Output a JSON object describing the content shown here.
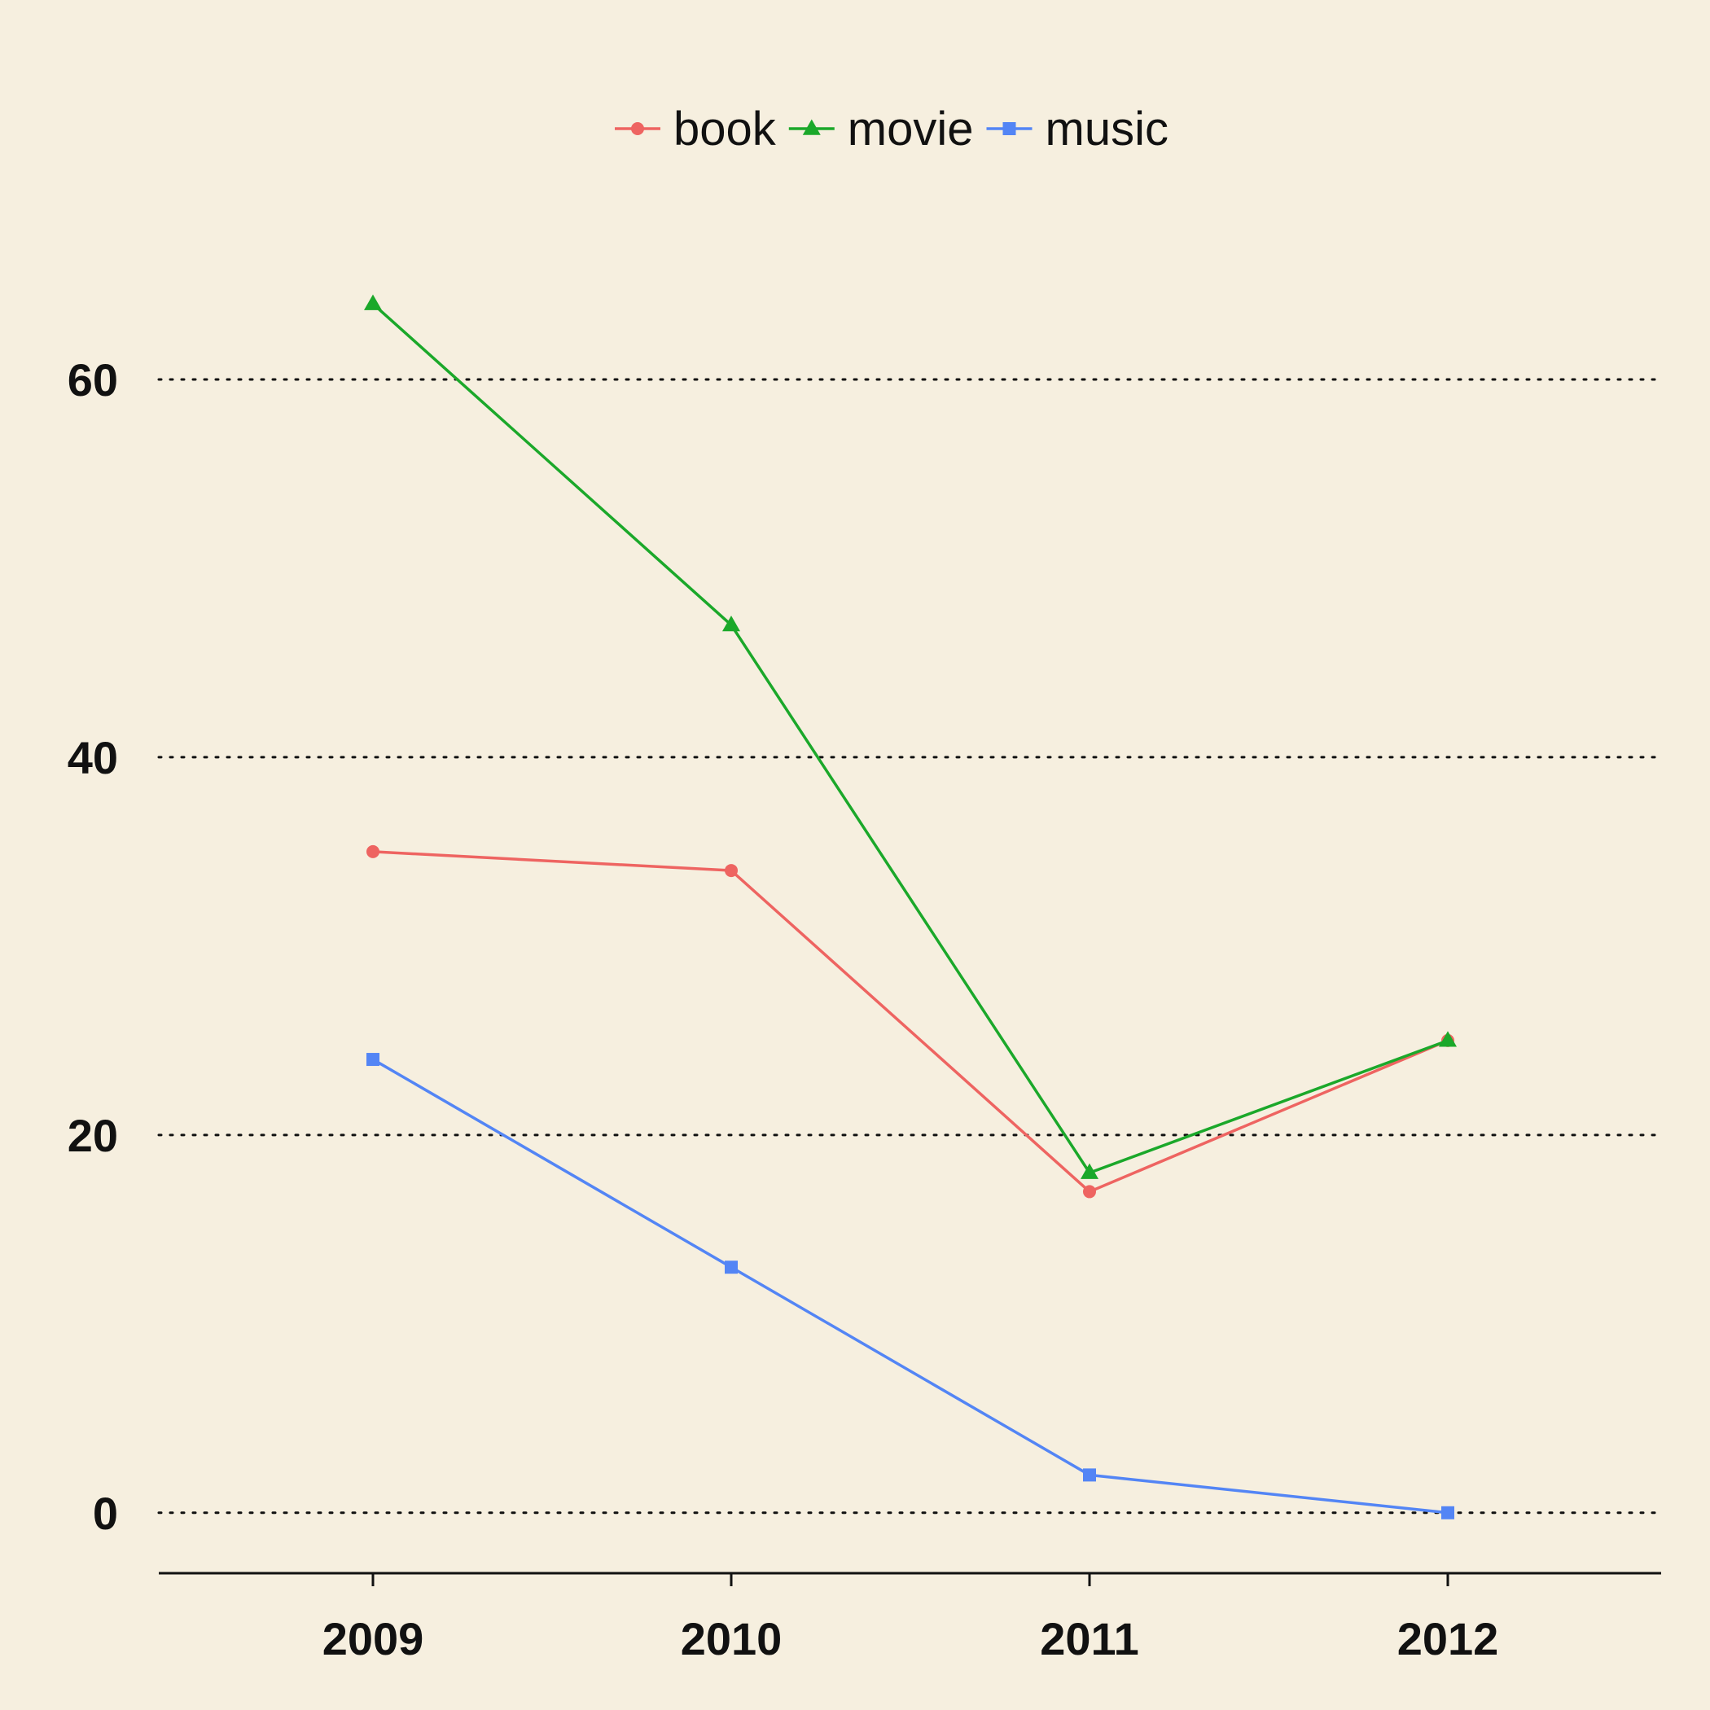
{
  "chart_data": {
    "type": "line",
    "categories": [
      "2009",
      "2010",
      "2011",
      "2012"
    ],
    "series": [
      {
        "name": "book",
        "values": [
          35,
          34,
          17,
          25
        ],
        "color": "#EE6461",
        "marker": "circle"
      },
      {
        "name": "movie",
        "values": [
          64,
          47,
          18,
          25
        ],
        "color": "#1BA82A",
        "marker": "triangle"
      },
      {
        "name": "music",
        "values": [
          24,
          13,
          2,
          0
        ],
        "color": "#5385F5",
        "marker": "square"
      }
    ],
    "y_ticks": [
      "0",
      "20",
      "40",
      "60"
    ],
    "ylim": [
      -3.2,
      70
    ],
    "grid": "horizontal dotted",
    "legend_position": "top",
    "title": "",
    "xlabel": "",
    "ylabel": ""
  }
}
